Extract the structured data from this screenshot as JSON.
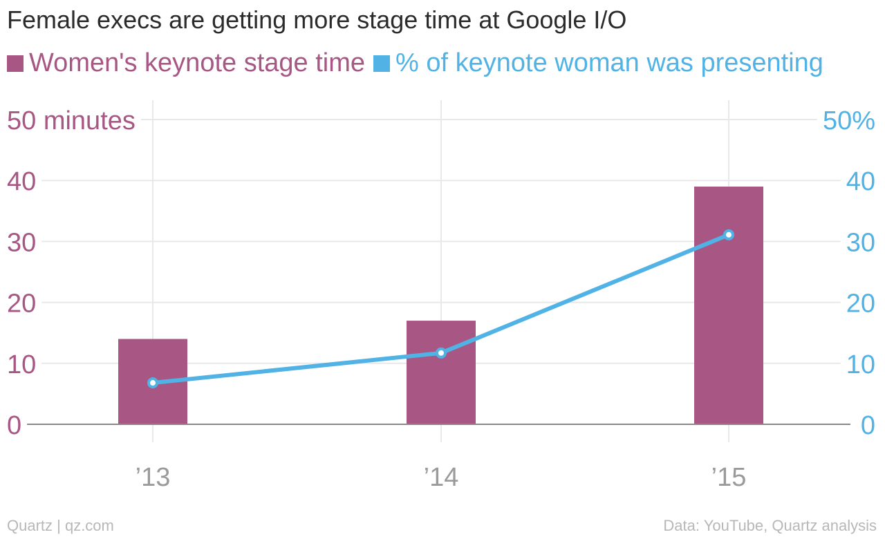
{
  "title": "Female execs are getting more stage time at Google I/O",
  "legend": [
    {
      "label": "Women's keynote stage time",
      "color": "#a85683"
    },
    {
      "label": "% of keynote woman was presenting",
      "color": "#51b2e5"
    }
  ],
  "source": "Quartz | qz.com",
  "credit": "Data: YouTube, Quartz analysis",
  "chart_data": {
    "type": "bar",
    "categories": [
      "’13",
      "’14",
      "’15"
    ],
    "series": [
      {
        "name": "Women's keynote stage time",
        "type": "bar",
        "axis": "left",
        "color": "#a85683",
        "values": [
          14,
          17,
          39
        ]
      },
      {
        "name": "% of keynote woman was presenting",
        "type": "line",
        "axis": "right",
        "color": "#51b2e5",
        "values": [
          6.8,
          11.7,
          31.1
        ]
      }
    ],
    "left_axis": {
      "ylim": [
        0,
        50
      ],
      "ticks": [
        "0",
        "10",
        "20",
        "30",
        "40",
        "50 minutes"
      ],
      "color": "#a85683"
    },
    "right_axis": {
      "ylim": [
        0,
        50
      ],
      "ticks": [
        "0",
        "10",
        "20",
        "30",
        "40",
        "50%"
      ],
      "color": "#51b2e5"
    },
    "grid": true
  }
}
